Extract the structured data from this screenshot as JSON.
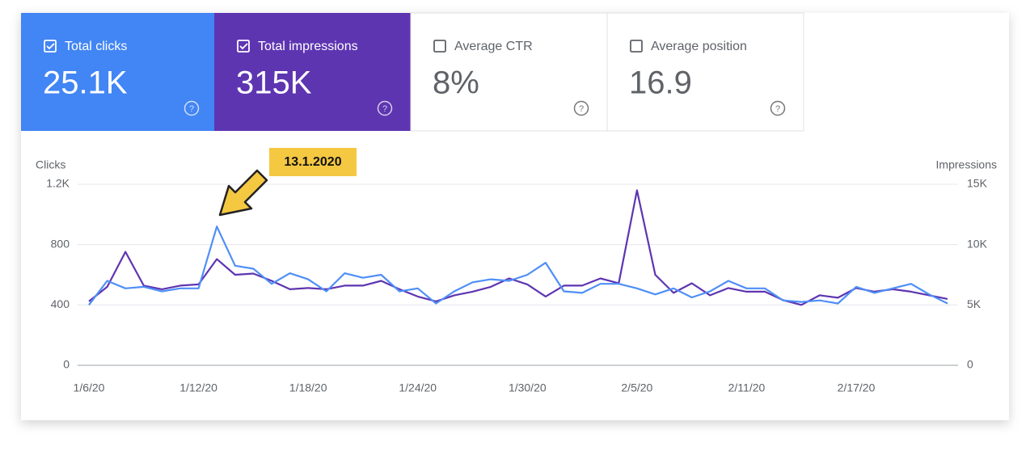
{
  "cards": [
    {
      "label": "Total clicks",
      "value": "25.1K",
      "checked": true,
      "color": "#4285f4"
    },
    {
      "label": "Total impressions",
      "value": "315K",
      "checked": true,
      "color": "#5e35b1"
    },
    {
      "label": "Average CTR",
      "value": "8%",
      "checked": false,
      "color": "#ffffff"
    },
    {
      "label": "Average position",
      "value": "16.9",
      "checked": false,
      "color": "#ffffff"
    }
  ],
  "annotation": "13.1.2020",
  "chart_data": {
    "type": "line",
    "y_label": "Clicks",
    "y2_label": "Impressions",
    "categories": [
      "1/6/20",
      null,
      null,
      null,
      null,
      null,
      "1/12/20",
      null,
      null,
      null,
      null,
      null,
      "1/18/20",
      null,
      null,
      null,
      null,
      null,
      "1/24/20",
      null,
      null,
      null,
      null,
      null,
      "1/30/20",
      null,
      null,
      null,
      null,
      null,
      "2/5/20",
      null,
      null,
      null,
      null,
      null,
      "2/11/20",
      null,
      null,
      null,
      null,
      null,
      "2/17/20",
      null,
      null,
      null,
      null,
      null
    ],
    "series": [
      {
        "name": "Clicks",
        "color": "#4f8ff7",
        "values": [
          400,
          560,
          510,
          520,
          490,
          510,
          510,
          920,
          660,
          640,
          540,
          610,
          570,
          490,
          610,
          580,
          600,
          490,
          510,
          410,
          490,
          550,
          570,
          560,
          600,
          680,
          490,
          480,
          540,
          540,
          510,
          470,
          510,
          450,
          490,
          560,
          510,
          510,
          430,
          420,
          430,
          410,
          520,
          480,
          510,
          540,
          470,
          410
        ]
      },
      {
        "name": "Impressions",
        "color": "#5e35b1",
        "axis": "y2",
        "values": [
          5300,
          6500,
          9400,
          6600,
          6300,
          6600,
          6700,
          8800,
          7500,
          7600,
          7000,
          6300,
          6400,
          6300,
          6600,
          6600,
          7000,
          6300,
          5700,
          5300,
          5800,
          6100,
          6500,
          7200,
          6700,
          5700,
          6600,
          6600,
          7200,
          6800,
          14500,
          7500,
          6000,
          6800,
          5800,
          6400,
          6100,
          6100,
          5400,
          5000,
          5800,
          5600,
          6400,
          6100,
          6300,
          6100,
          5800,
          5500
        ]
      }
    ],
    "ylim": [
      0,
      1200
    ],
    "yticks": [
      0,
      400,
      800,
      {
        "value": 1200,
        "label": "1.2K"
      }
    ],
    "y2lim": [
      0,
      15000
    ],
    "y2ticks": [
      0,
      {
        "value": 5000,
        "label": "5K"
      },
      {
        "value": 10000,
        "label": "10K"
      },
      {
        "value": 15000,
        "label": "15K"
      }
    ],
    "grid": true
  }
}
